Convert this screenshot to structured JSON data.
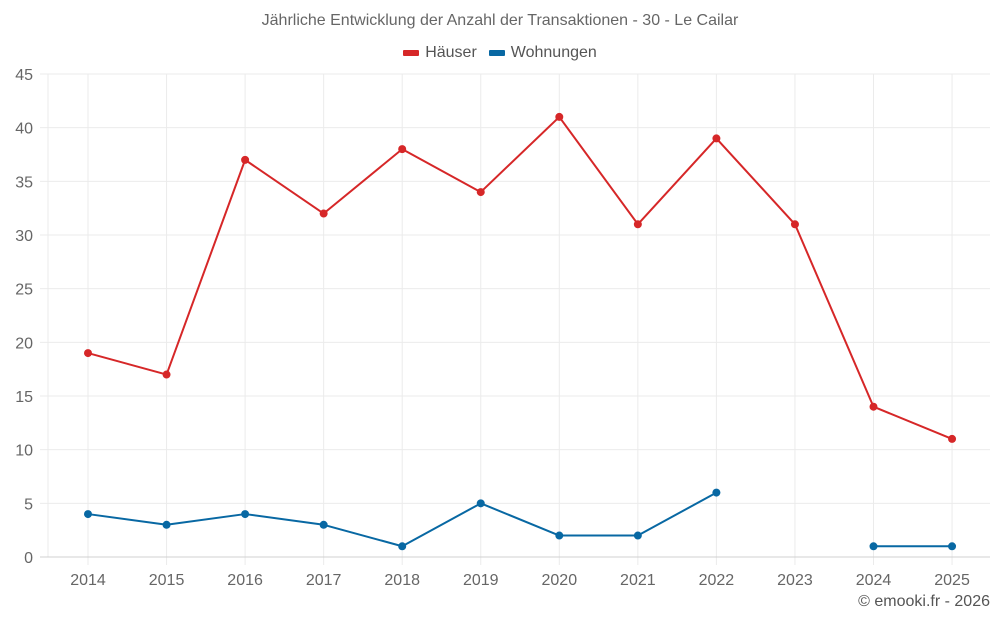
{
  "chart_data": {
    "type": "line",
    "title": "Jährliche Entwicklung der Anzahl der Transaktionen - 30 - Le Cailar",
    "xlabel": "",
    "ylabel": "",
    "categories": [
      "2014",
      "2015",
      "2016",
      "2017",
      "2018",
      "2019",
      "2020",
      "2021",
      "2022",
      "2023",
      "2024",
      "2025"
    ],
    "series": [
      {
        "name": "Häuser",
        "color": "#d62728",
        "values": [
          19,
          17,
          37,
          32,
          38,
          34,
          41,
          31,
          39,
          31,
          14,
          11
        ]
      },
      {
        "name": "Wohnungen",
        "color": "#0868a3",
        "values": [
          4,
          3,
          4,
          3,
          1,
          5,
          2,
          2,
          6,
          null,
          1,
          1
        ]
      }
    ],
    "ylim": [
      0,
      45
    ],
    "yticks": [
      0,
      5,
      10,
      15,
      20,
      25,
      30,
      35,
      40,
      45
    ],
    "grid": true,
    "legend_position": "top"
  },
  "header": {
    "title": "Jährliche Entwicklung der Anzahl der Transaktionen - 30 - Le Cailar"
  },
  "legend": {
    "items": [
      {
        "label": "Häuser",
        "color": "#d62728"
      },
      {
        "label": "Wohnungen",
        "color": "#0868a3"
      }
    ]
  },
  "footer": {
    "credit": "© emooki.fr - 2026"
  },
  "colors": {
    "grid": "#ebebeb",
    "axis": "#d0d0d0",
    "tick_text": "#666666"
  }
}
